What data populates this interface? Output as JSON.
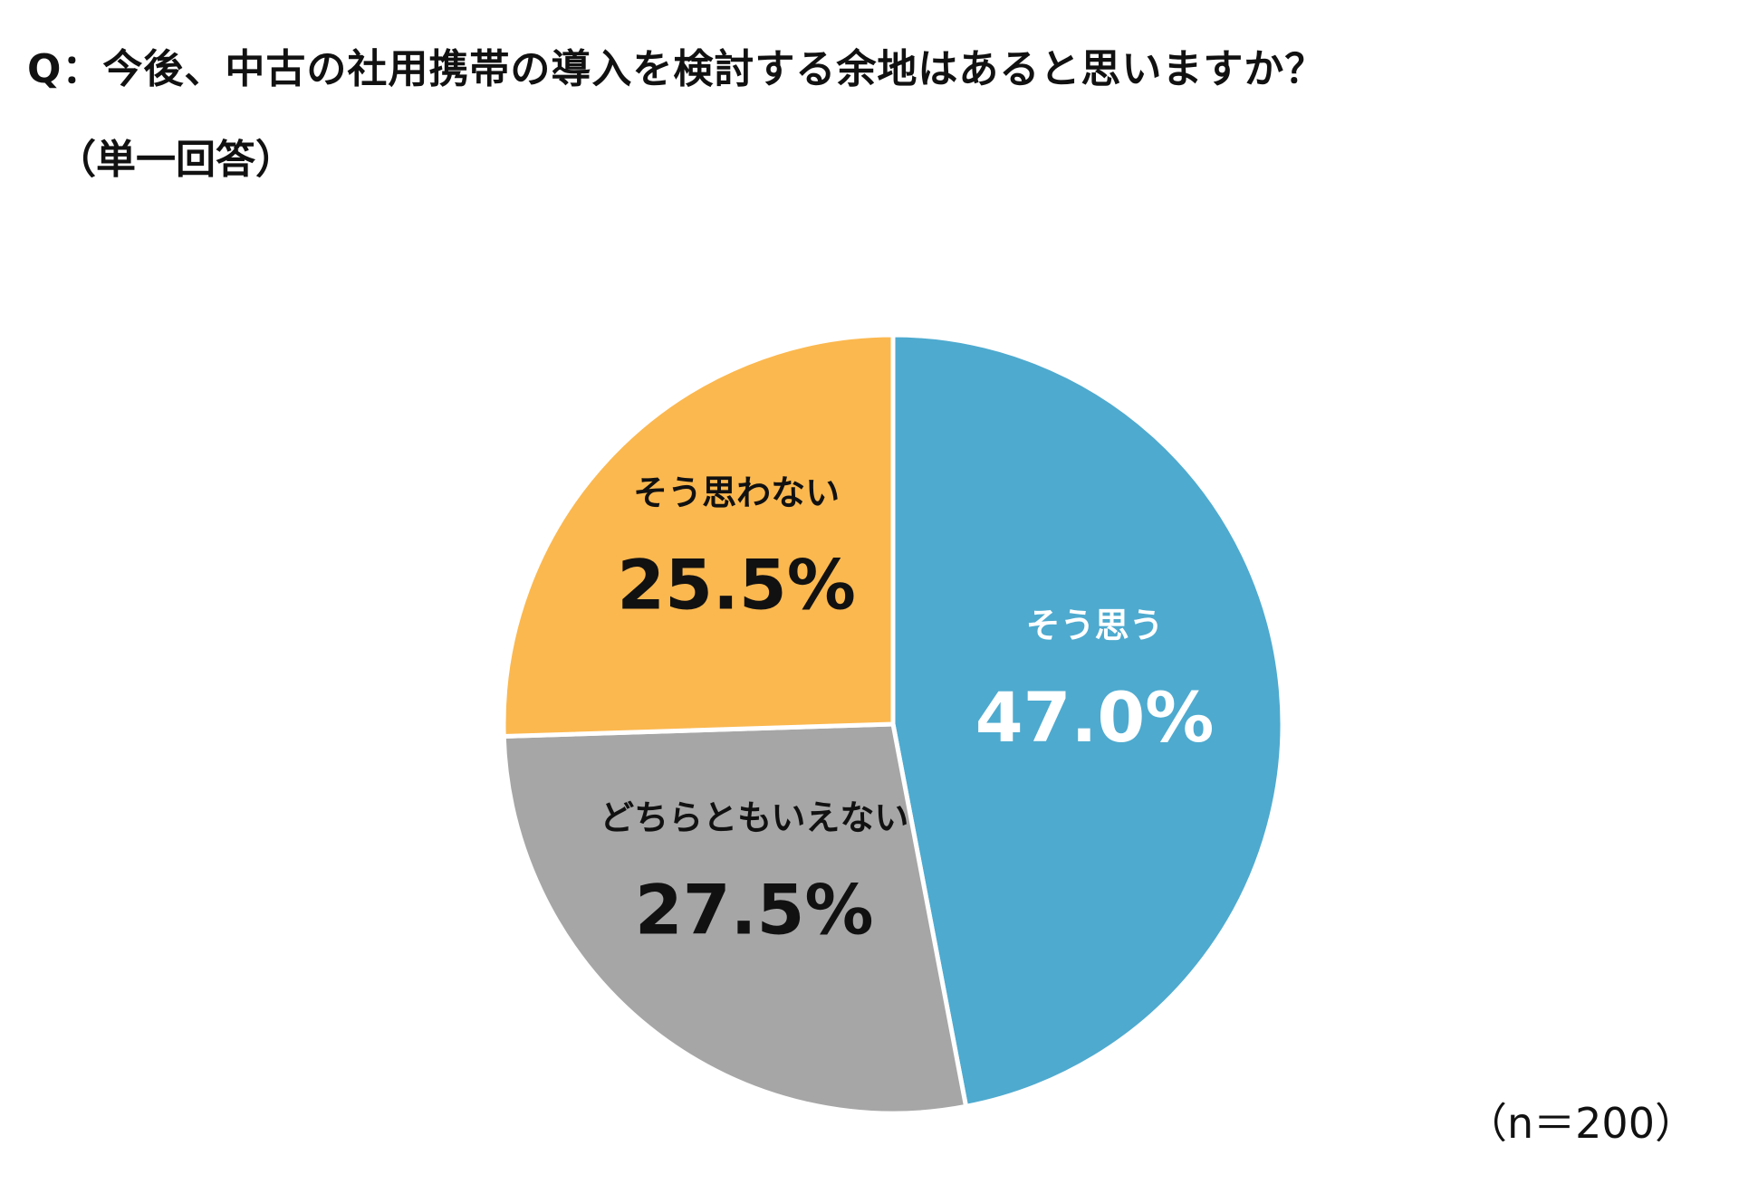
{
  "question": "Q：今後、中古の社用携帯の導入を検討する余地はあると思いますか？",
  "subtitle": "（単一回答）",
  "sample_note": "（n＝200）",
  "chart_data": {
    "type": "pie",
    "title": "Q：今後、中古の社用携帯の導入を検討する余地はあると思いますか？",
    "subtitle": "（単一回答）",
    "unit": "%",
    "start": "12 o'clock",
    "direction": "clockwise",
    "slices": [
      {
        "label": "そう思う",
        "value": 47.0,
        "display": "47.0%",
        "color": "#4eaacf",
        "text_color": "#ffffff"
      },
      {
        "label": "どちらともいえない",
        "value": 27.5,
        "display": "27.5%",
        "color": "#a6a6a6",
        "text_color": "#111111"
      },
      {
        "label": "そう思わない",
        "value": 25.5,
        "display": "25.5%",
        "color": "#fbb84f",
        "text_color": "#111111"
      }
    ]
  }
}
